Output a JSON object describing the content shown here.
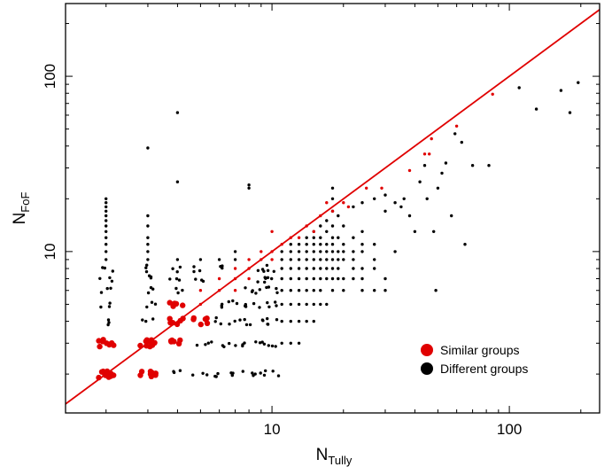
{
  "chart_data": {
    "type": "scatter",
    "xlabel": {
      "main": "N",
      "sub": "Tully"
    },
    "ylabel": {
      "main": "N",
      "sub": "FoF"
    },
    "x_scale": "log",
    "y_scale": "log",
    "xlim": [
      1.35,
      240
    ],
    "ylim": [
      1.2,
      260
    ],
    "x_ticks": [
      {
        "value": 10,
        "label": "10"
      },
      {
        "value": 100,
        "label": "100"
      }
    ],
    "y_ticks": [
      {
        "value": 10,
        "label": "10"
      },
      {
        "value": 100,
        "label": "100"
      }
    ],
    "reference_line": {
      "label": "y = x",
      "color": "#e00000"
    },
    "legend": {
      "placement": "bottom-right",
      "entries": [
        {
          "label": "Similar groups",
          "color": "#e00000"
        },
        {
          "label": "Different groups",
          "color": "#000000"
        }
      ]
    },
    "series": [
      {
        "name": "Similar groups",
        "color": "#e00000",
        "points": [
          [
            2,
            2
          ],
          [
            2,
            3
          ],
          [
            3,
            2
          ],
          [
            3,
            3
          ],
          [
            4,
            3
          ],
          [
            4,
            4
          ],
          [
            4,
            5
          ],
          [
            5,
            4
          ],
          [
            5,
            5
          ],
          [
            5,
            6
          ],
          [
            6,
            6
          ],
          [
            6,
            7
          ],
          [
            7,
            6
          ],
          [
            7,
            7
          ],
          [
            7,
            8
          ],
          [
            8,
            7
          ],
          [
            8,
            8
          ],
          [
            8,
            9
          ],
          [
            9,
            9
          ],
          [
            9,
            10
          ],
          [
            10,
            9
          ],
          [
            10,
            10
          ],
          [
            10,
            13
          ],
          [
            11,
            11
          ],
          [
            12,
            12
          ],
          [
            13,
            12
          ],
          [
            14,
            14
          ],
          [
            15,
            13
          ],
          [
            16,
            16
          ],
          [
            17,
            19
          ],
          [
            18,
            17
          ],
          [
            20,
            19
          ],
          [
            21,
            18
          ],
          [
            25,
            23
          ],
          [
            29,
            23
          ],
          [
            38,
            29
          ],
          [
            44,
            36
          ],
          [
            46,
            36
          ],
          [
            47,
            44
          ],
          [
            60,
            52
          ],
          [
            85,
            79
          ]
        ]
      },
      {
        "name": "Different groups",
        "color": "#000000",
        "points": [
          [
            2,
            4
          ],
          [
            2,
            5
          ],
          [
            2,
            6
          ],
          [
            2,
            7
          ],
          [
            2,
            8
          ],
          [
            2,
            9
          ],
          [
            2,
            10
          ],
          [
            2,
            11
          ],
          [
            2,
            12
          ],
          [
            2,
            13
          ],
          [
            2,
            14
          ],
          [
            2,
            15
          ],
          [
            2,
            16
          ],
          [
            2,
            17
          ],
          [
            2,
            18
          ],
          [
            2,
            19
          ],
          [
            2,
            20
          ],
          [
            3,
            4
          ],
          [
            3,
            5
          ],
          [
            3,
            6
          ],
          [
            3,
            7
          ],
          [
            3,
            8
          ],
          [
            3,
            9
          ],
          [
            3,
            10
          ],
          [
            3,
            11
          ],
          [
            3,
            12
          ],
          [
            3,
            14
          ],
          [
            3,
            16
          ],
          [
            3,
            39
          ],
          [
            4,
            2
          ],
          [
            4,
            6
          ],
          [
            4,
            7
          ],
          [
            4,
            8
          ],
          [
            4,
            9
          ],
          [
            4,
            25
          ],
          [
            4,
            62
          ],
          [
            5,
            2
          ],
          [
            5,
            3
          ],
          [
            5,
            7
          ],
          [
            5,
            8
          ],
          [
            5,
            9
          ],
          [
            6,
            2
          ],
          [
            6,
            3
          ],
          [
            6,
            4
          ],
          [
            6,
            5
          ],
          [
            6,
            8
          ],
          [
            6,
            9
          ],
          [
            7,
            2
          ],
          [
            7,
            3
          ],
          [
            7,
            4
          ],
          [
            7,
            5
          ],
          [
            7,
            9
          ],
          [
            7,
            10
          ],
          [
            8,
            2
          ],
          [
            8,
            3
          ],
          [
            8,
            4
          ],
          [
            8,
            5
          ],
          [
            8,
            6
          ],
          [
            8,
            23
          ],
          [
            8,
            24
          ],
          [
            9,
            2
          ],
          [
            9,
            3
          ],
          [
            9,
            4
          ],
          [
            9,
            5
          ],
          [
            9,
            6
          ],
          [
            9,
            7
          ],
          [
            9,
            8
          ],
          [
            10,
            2
          ],
          [
            10,
            3
          ],
          [
            10,
            4
          ],
          [
            10,
            5
          ],
          [
            10,
            6
          ],
          [
            10,
            7
          ],
          [
            10,
            8
          ],
          [
            11,
            3
          ],
          [
            11,
            4
          ],
          [
            11,
            5
          ],
          [
            11,
            6
          ],
          [
            11,
            7
          ],
          [
            11,
            8
          ],
          [
            11,
            9
          ],
          [
            11,
            10
          ],
          [
            12,
            3
          ],
          [
            12,
            4
          ],
          [
            12,
            5
          ],
          [
            12,
            6
          ],
          [
            12,
            7
          ],
          [
            12,
            8
          ],
          [
            12,
            9
          ],
          [
            12,
            10
          ],
          [
            12,
            11
          ],
          [
            13,
            3
          ],
          [
            13,
            4
          ],
          [
            13,
            5
          ],
          [
            13,
            6
          ],
          [
            13,
            7
          ],
          [
            13,
            8
          ],
          [
            13,
            9
          ],
          [
            13,
            10
          ],
          [
            13,
            11
          ],
          [
            14,
            4
          ],
          [
            14,
            5
          ],
          [
            14,
            6
          ],
          [
            14,
            7
          ],
          [
            14,
            8
          ],
          [
            14,
            9
          ],
          [
            14,
            10
          ],
          [
            14,
            11
          ],
          [
            14,
            12
          ],
          [
            15,
            4
          ],
          [
            15,
            5
          ],
          [
            15,
            6
          ],
          [
            15,
            7
          ],
          [
            15,
            8
          ],
          [
            15,
            9
          ],
          [
            15,
            10
          ],
          [
            15,
            11
          ],
          [
            15,
            12
          ],
          [
            15,
            13
          ],
          [
            16,
            5
          ],
          [
            16,
            6
          ],
          [
            16,
            7
          ],
          [
            16,
            8
          ],
          [
            16,
            9
          ],
          [
            16,
            10
          ],
          [
            16,
            11
          ],
          [
            16,
            12
          ],
          [
            16,
            14
          ],
          [
            17,
            5
          ],
          [
            17,
            7
          ],
          [
            17,
            8
          ],
          [
            17,
            9
          ],
          [
            17,
            10
          ],
          [
            17,
            11
          ],
          [
            17,
            13
          ],
          [
            17,
            15
          ],
          [
            18,
            6
          ],
          [
            18,
            7
          ],
          [
            18,
            8
          ],
          [
            18,
            9
          ],
          [
            18,
            10
          ],
          [
            18,
            11
          ],
          [
            18,
            12
          ],
          [
            18,
            14
          ],
          [
            18,
            17
          ],
          [
            18,
            20
          ],
          [
            18,
            23
          ],
          [
            19,
            7
          ],
          [
            19,
            8
          ],
          [
            19,
            9
          ],
          [
            19,
            10
          ],
          [
            19,
            12
          ],
          [
            19,
            16
          ],
          [
            20,
            6
          ],
          [
            20,
            7
          ],
          [
            20,
            9
          ],
          [
            20,
            10
          ],
          [
            20,
            11
          ],
          [
            20,
            14
          ],
          [
            22,
            7
          ],
          [
            22,
            8
          ],
          [
            22,
            9
          ],
          [
            22,
            10
          ],
          [
            22,
            12
          ],
          [
            22,
            18
          ],
          [
            24,
            6
          ],
          [
            24,
            7
          ],
          [
            24,
            8
          ],
          [
            24,
            10
          ],
          [
            24,
            11
          ],
          [
            24,
            13
          ],
          [
            24,
            19
          ],
          [
            27,
            6
          ],
          [
            27,
            8
          ],
          [
            27,
            9
          ],
          [
            27,
            11
          ],
          [
            27,
            20
          ],
          [
            30,
            6
          ],
          [
            30,
            7
          ],
          [
            30,
            17
          ],
          [
            30,
            21
          ],
          [
            33,
            10
          ],
          [
            33,
            19
          ],
          [
            35,
            18
          ],
          [
            36,
            20
          ],
          [
            38,
            16
          ],
          [
            40,
            13
          ],
          [
            42,
            25
          ],
          [
            44,
            31
          ],
          [
            45,
            20
          ],
          [
            48,
            13
          ],
          [
            49,
            6
          ],
          [
            50,
            23
          ],
          [
            52,
            28
          ],
          [
            54,
            32
          ],
          [
            57,
            16
          ],
          [
            59,
            47
          ],
          [
            63,
            42
          ],
          [
            65,
            11
          ],
          [
            70,
            31
          ],
          [
            82,
            31
          ],
          [
            110,
            86
          ],
          [
            130,
            65
          ],
          [
            165,
            83
          ],
          [
            180,
            62
          ],
          [
            195,
            92
          ]
        ]
      }
    ]
  }
}
